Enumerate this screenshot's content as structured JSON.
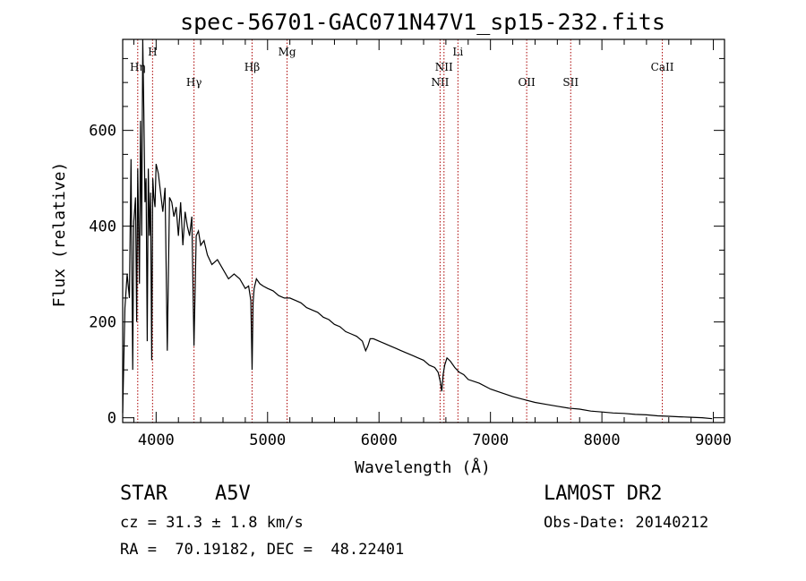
{
  "chart_data": {
    "type": "line",
    "title": "spec-56701-GAC071N47V1_sp15-232.fits",
    "xlabel": "Wavelength (Å)",
    "ylabel": "Flux (relative)",
    "xlim": [
      3700,
      9100
    ],
    "ylim": [
      -10,
      790
    ],
    "xticks": [
      4000,
      5000,
      6000,
      7000,
      8000,
      9000
    ],
    "yticks": [
      0,
      200,
      400,
      600
    ],
    "grid": false,
    "color": "#000000",
    "line_color": "#aa0000",
    "series": [
      {
        "x": [
          3700,
          3720,
          3740,
          3760,
          3775,
          3790,
          3800,
          3815,
          3825,
          3835,
          3850,
          3860,
          3870,
          3880,
          3890,
          3900,
          3910,
          3920,
          3930,
          3940,
          3950,
          3960,
          3970,
          3980,
          3990,
          4000,
          4020,
          4040,
          4060,
          4080,
          4100,
          4120,
          4140,
          4160,
          4180,
          4200,
          4220,
          4240,
          4260,
          4280,
          4300,
          4320,
          4340,
          4360,
          4380,
          4400,
          4430,
          4460,
          4500,
          4550,
          4600,
          4650,
          4700,
          4750,
          4800,
          4830,
          4850,
          4861,
          4870,
          4880,
          4900,
          4930,
          4960,
          5000,
          5050,
          5100,
          5150,
          5200,
          5250,
          5300,
          5350,
          5400,
          5450,
          5500,
          5550,
          5600,
          5650,
          5700,
          5750,
          5800,
          5850,
          5880,
          5900,
          5920,
          5950,
          6000,
          6050,
          6100,
          6150,
          6200,
          6250,
          6300,
          6350,
          6400,
          6450,
          6500,
          6530,
          6550,
          6563,
          6575,
          6590,
          6610,
          6640,
          6680,
          6720,
          6760,
          6800,
          6900,
          7000,
          7100,
          7200,
          7300,
          7400,
          7500,
          7600,
          7700,
          7800,
          7900,
          8000,
          8100,
          8200,
          8300,
          8400,
          8500,
          8600,
          8700,
          8800,
          8900,
          8990
        ],
        "y": [
          10,
          230,
          300,
          250,
          540,
          100,
          410,
          460,
          200,
          520,
          280,
          620,
          380,
          790,
          640,
          450,
          500,
          160,
          520,
          380,
          470,
          120,
          500,
          460,
          440,
          530,
          510,
          470,
          430,
          480,
          140,
          460,
          450,
          420,
          440,
          380,
          450,
          360,
          430,
          400,
          380,
          420,
          150,
          380,
          390,
          360,
          370,
          340,
          320,
          330,
          310,
          290,
          300,
          290,
          270,
          275,
          245,
          100,
          240,
          270,
          290,
          280,
          275,
          270,
          265,
          255,
          250,
          250,
          245,
          240,
          230,
          225,
          220,
          210,
          205,
          195,
          190,
          180,
          175,
          170,
          160,
          140,
          150,
          165,
          165,
          160,
          155,
          150,
          145,
          140,
          135,
          130,
          125,
          120,
          110,
          105,
          95,
          75,
          55,
          90,
          110,
          125,
          118,
          105,
          95,
          90,
          80,
          72,
          60,
          52,
          44,
          38,
          32,
          28,
          24,
          20,
          18,
          14,
          12,
          10,
          9,
          7,
          6,
          4,
          3,
          2,
          1,
          0,
          -2
        ]
      }
    ],
    "spectral_lines": [
      {
        "label": "Hη",
        "wavelength": 3835,
        "row": 1
      },
      {
        "label": "H",
        "wavelength": 3968,
        "row": 0
      },
      {
        "label": "Hγ",
        "wavelength": 4340,
        "row": 2
      },
      {
        "label": "Hβ",
        "wavelength": 4861,
        "row": 1
      },
      {
        "label": "Mg",
        "wavelength": 5175,
        "row": 0
      },
      {
        "label": "NII",
        "wavelength": 6548,
        "row": 2
      },
      {
        "label": "NII",
        "wavelength": 6583,
        "row": 1
      },
      {
        "label": "Li",
        "wavelength": 6708,
        "row": 0
      },
      {
        "label": "OII",
        "wavelength": 7325,
        "row": 2
      },
      {
        "label": "SII",
        "wavelength": 7720,
        "row": 2
      },
      {
        "label": "CaII",
        "wavelength": 8542,
        "row": 1
      }
    ]
  },
  "info": {
    "object_class": "STAR",
    "subclass": "A5V",
    "survey": "LAMOST DR2",
    "redshift": "cz = 31.3 ± 1.8 km/s",
    "obs_date": "Obs-Date: 20140212",
    "coords": "RA =  70.19182, DEC =  48.22401"
  }
}
